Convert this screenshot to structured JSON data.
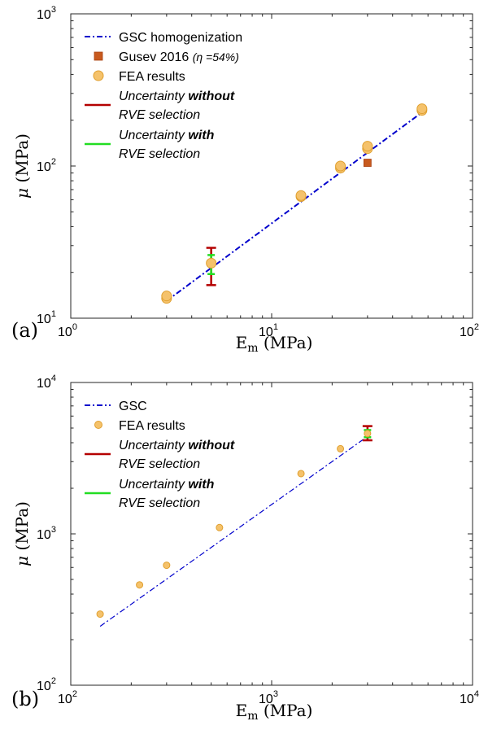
{
  "colors": {
    "gsc": "#0000cc",
    "gusev": "#c85a1e",
    "fea_fill": "#f5c26b",
    "fea_stroke": "#e0a030",
    "uncert_without": "#b40000",
    "uncert_with": "#22dd22"
  },
  "chart_data": [
    {
      "type": "scatter",
      "panel_label": "(a)",
      "xlabel": "E",
      "xlabel_sub": "m",
      "xlabel_units": "(MPa)",
      "ylabel": "μ",
      "ylabel_units": "(MPa)",
      "xscale": "log",
      "yscale": "log",
      "xlim": [
        1,
        100
      ],
      "ylim": [
        10,
        1000
      ],
      "xticks": [
        {
          "base": "10",
          "exp": "0"
        },
        {
          "base": "10",
          "exp": "1"
        },
        {
          "base": "10",
          "exp": "2"
        }
      ],
      "yticks": [
        {
          "base": "10",
          "exp": "1"
        },
        {
          "base": "10",
          "exp": "2"
        },
        {
          "base": "10",
          "exp": "3"
        }
      ],
      "legend_position": "top-left",
      "series": [
        {
          "name": "GSC homogenization",
          "kind": "line",
          "style": "dash-dot",
          "x": [
            3,
            56
          ],
          "y": [
            13,
            225
          ]
        },
        {
          "name": "Gusev 2016",
          "name_suffix": "(η =54%)",
          "kind": "square",
          "x": [
            30
          ],
          "y": [
            105
          ]
        },
        {
          "name": "FEA results",
          "kind": "circle",
          "x": [
            3,
            3,
            5,
            14,
            14,
            22,
            22,
            30,
            30,
            56,
            56
          ],
          "y": [
            13.5,
            14,
            23,
            63,
            64,
            97,
            100,
            130,
            135,
            232,
            238
          ]
        }
      ],
      "uncertainty": [
        {
          "label_italic": "Uncertainty",
          "label_bold": "without",
          "label_line2": "RVE selection",
          "x": 5,
          "low": 16.5,
          "high": 29
        },
        {
          "label_italic": "Uncertainty",
          "label_bold": "with",
          "label_line2": "RVE selection",
          "x": 5,
          "low": 19.5,
          "high": 26
        }
      ]
    },
    {
      "type": "scatter",
      "panel_label": "(b)",
      "xlabel": "E",
      "xlabel_sub": "m",
      "xlabel_units": "(MPa)",
      "ylabel": "μ",
      "ylabel_units": "(MPa)",
      "xscale": "log",
      "yscale": "log",
      "xlim": [
        100,
        10000
      ],
      "ylim": [
        100,
        10000
      ],
      "xticks": [
        {
          "base": "10",
          "exp": "2"
        },
        {
          "base": "10",
          "exp": "3"
        },
        {
          "base": "10",
          "exp": "4"
        }
      ],
      "yticks": [
        {
          "base": "10",
          "exp": "2"
        },
        {
          "base": "10",
          "exp": "3"
        },
        {
          "base": "10",
          "exp": "4"
        }
      ],
      "legend_position": "top-left",
      "series": [
        {
          "name": "GSC",
          "kind": "line",
          "style": "dash-dot",
          "x": [
            140,
            3000
          ],
          "y": [
            245,
            4400
          ]
        },
        {
          "name": "FEA results",
          "kind": "circle",
          "x": [
            140,
            220,
            300,
            550,
            1400,
            2200,
            3000
          ],
          "y": [
            295,
            460,
            620,
            1100,
            2500,
            3650,
            4600
          ]
        }
      ],
      "uncertainty": [
        {
          "label_italic": "Uncertainty",
          "label_bold": "without",
          "label_line2": "RVE selection",
          "x": 3000,
          "low": 4150,
          "high": 5150
        },
        {
          "label_italic": "Uncertainty",
          "label_bold": "with",
          "label_line2": "RVE selection",
          "x": 3000,
          "low": 4350,
          "high": 4850
        }
      ]
    }
  ]
}
